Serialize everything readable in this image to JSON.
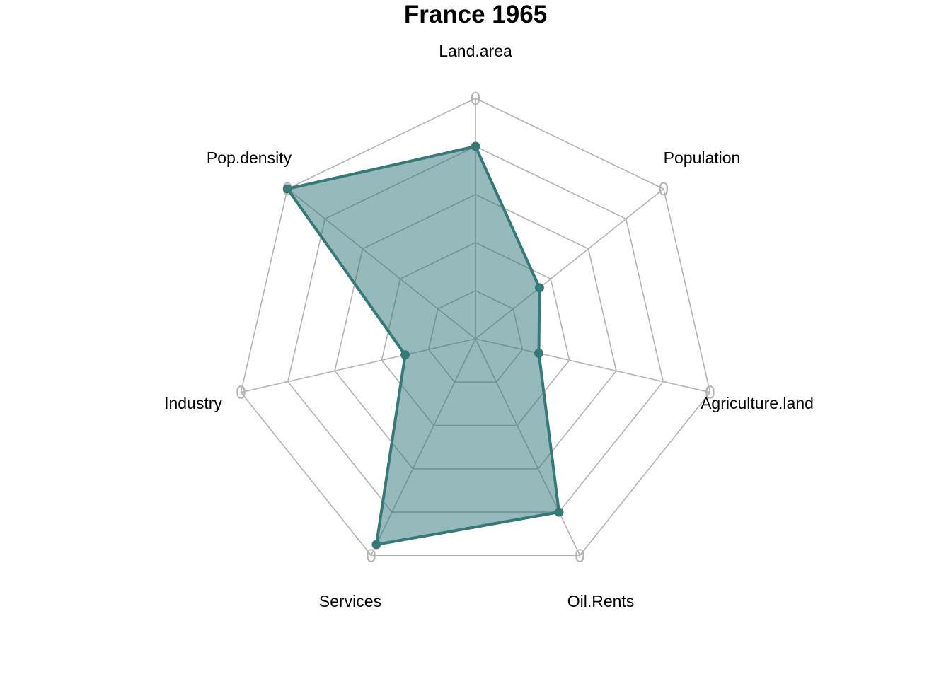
{
  "chart_data": {
    "type": "radar",
    "title": "France 1965",
    "axes": [
      "Land.area",
      "Population",
      "Agriculture.land",
      "Oil.Rents",
      "Services",
      "Industry",
      "Pop.density"
    ],
    "series": [
      {
        "values": [
          0.8,
          0.34,
          0.27,
          0.8,
          0.95,
          0.3,
          1.0
        ]
      }
    ],
    "range": [
      0,
      1
    ],
    "grid_levels": 5,
    "axis_tick_label": "0",
    "colors": {
      "line": "#357a78",
      "fill": "#2e7479",
      "fill_opacity": 0.5,
      "grid": "#b3b3b3"
    }
  }
}
